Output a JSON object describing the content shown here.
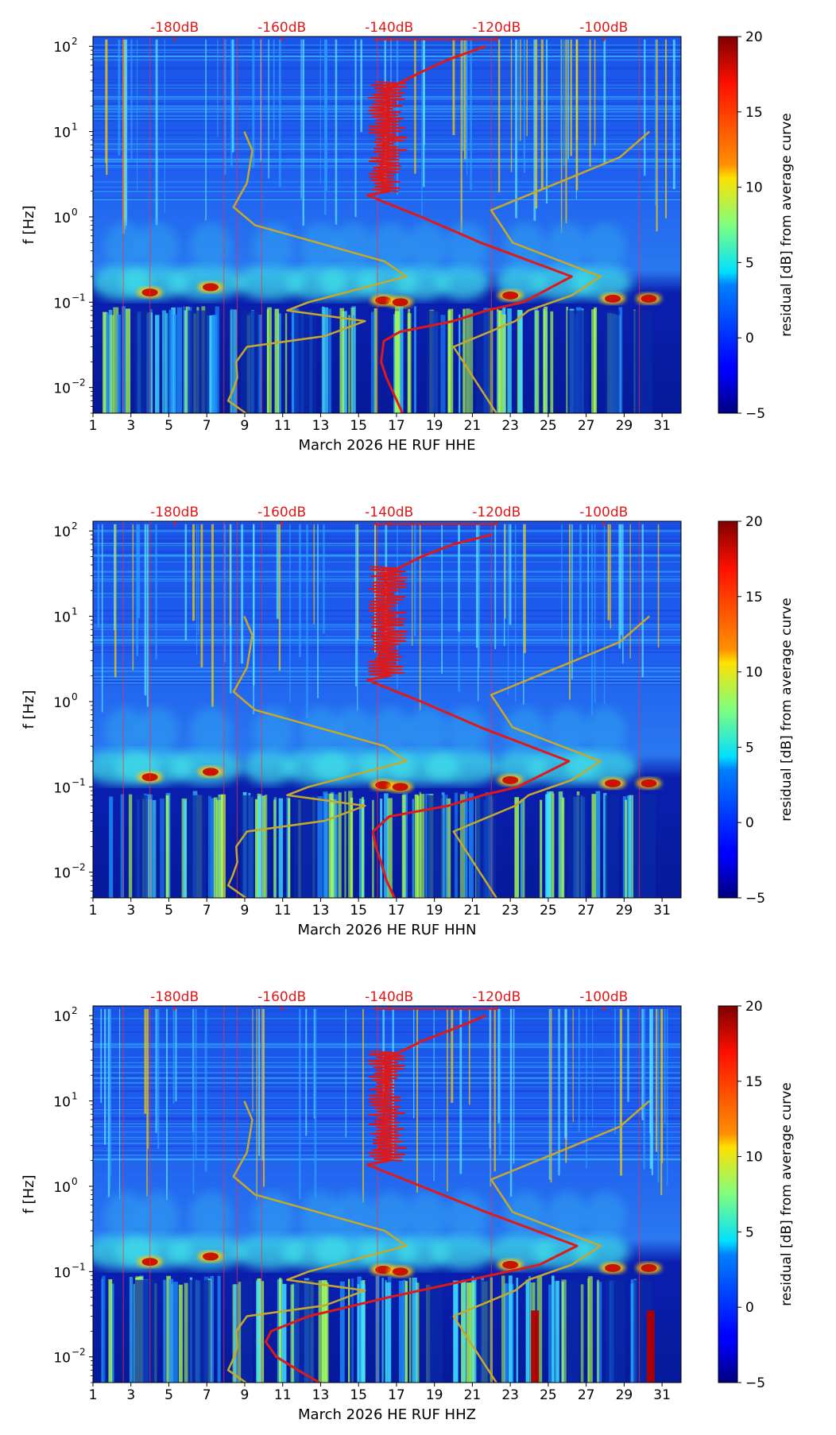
{
  "chart_data": [
    {
      "type": "heatmap",
      "panel_label": "March 2026 HE RUF  HHE",
      "xlabel": "March 2026 HE RUF  HHE",
      "ylabel": "f [Hz]",
      "x_range": [
        1,
        32
      ],
      "x_ticks": [
        "1",
        "3",
        "5",
        "7",
        "9",
        "11",
        "13",
        "15",
        "17",
        "19",
        "21",
        "23",
        "25",
        "27",
        "29",
        "31"
      ],
      "y_range": [
        0.005,
        130
      ],
      "y_scale": "log",
      "y_ticks": [
        {
          "v": 0.01,
          "label": "10"
        },
        {
          "v": 0.1,
          "label": "10"
        },
        {
          "v": 1,
          "label": "10"
        },
        {
          "v": 10,
          "label": "10"
        },
        {
          "v": 100,
          "label": "10"
        }
      ],
      "y_tick_exponents": [
        "−2",
        "−1",
        "0",
        "1",
        "2"
      ],
      "top_axis_labels": [
        "-180dB",
        "-160dB",
        "-140dB",
        "-120dB",
        "-100dB"
      ],
      "top_axis_db": [
        -180,
        -160,
        -140,
        -120,
        -100
      ],
      "colorbar": {
        "label": "residual [dB] from average curve",
        "min": -5,
        "max": 20,
        "ticks": [
          "−5",
          "0",
          "5",
          "10",
          "15",
          "20"
        ]
      },
      "series": [
        {
          "name": "low noise model",
          "color": "#c8a82a",
          "points": [
            [
              0.005,
              -166.7
            ],
            [
              0.007,
              -170
            ],
            [
              0.009,
              -169.2
            ],
            [
              0.013,
              -168.3
            ],
            [
              0.02,
              -168.5
            ],
            [
              0.03,
              -166.5
            ],
            [
              0.04,
              -152
            ],
            [
              0.06,
              -144.5
            ],
            [
              0.08,
              -159
            ],
            [
              0.1,
              -155
            ],
            [
              0.2,
              -136.8
            ],
            [
              0.3,
              -140.8
            ],
            [
              0.8,
              -165
            ],
            [
              1.3,
              -169
            ],
            [
              2.5,
              -166.5
            ],
            [
              6,
              -165.5
            ],
            [
              10,
              -167
            ]
          ]
        },
        {
          "name": "high noise model",
          "color": "#c8a82a",
          "points": [
            [
              0.005,
              -120
            ],
            [
              0.03,
              -128
            ],
            [
              0.06,
              -116.5
            ],
            [
              0.08,
              -114
            ],
            [
              0.12,
              -106
            ],
            [
              0.2,
              -100.6
            ],
            [
              0.5,
              -117
            ],
            [
              1.2,
              -121
            ],
            [
              3,
              -105.5
            ],
            [
              5,
              -97
            ],
            [
              10,
              -91.5
            ]
          ]
        },
        {
          "name": "average PSD",
          "color": "#e01818",
          "points": [
            [
              0.005,
              -137.5
            ],
            [
              0.008,
              -139
            ],
            [
              0.013,
              -140.5
            ],
            [
              0.02,
              -141.5
            ],
            [
              0.035,
              -141
            ],
            [
              0.045,
              -138
            ],
            [
              0.06,
              -128
            ],
            [
              0.08,
              -121.8
            ],
            [
              0.1,
              -115
            ],
            [
              0.2,
              -106
            ],
            [
              0.5,
              -123
            ],
            [
              1,
              -134
            ],
            [
              1.5,
              -141
            ],
            [
              1.8,
              -144
            ],
            [
              2,
              -140
            ],
            [
              3,
              -142
            ],
            [
              5,
              -141
            ],
            [
              10,
              -141
            ],
            [
              20,
              -140
            ],
            [
              30,
              -141
            ],
            [
              50,
              -134
            ],
            [
              70,
              -129
            ],
            [
              100,
              -122
            ]
          ]
        }
      ]
    },
    {
      "type": "heatmap",
      "panel_label": "March 2026 HE RUF  HHN",
      "xlabel": "March 2026 HE RUF  HHN",
      "ylabel": "f [Hz]",
      "x_range": [
        1,
        32
      ],
      "x_ticks": [
        "1",
        "3",
        "5",
        "7",
        "9",
        "11",
        "13",
        "15",
        "17",
        "19",
        "21",
        "23",
        "25",
        "27",
        "29",
        "31"
      ],
      "y_range": [
        0.005,
        130
      ],
      "y_scale": "log",
      "y_ticks": [
        {
          "v": 0.01,
          "label": "10"
        },
        {
          "v": 0.1,
          "label": "10"
        },
        {
          "v": 1,
          "label": "10"
        },
        {
          "v": 10,
          "label": "10"
        },
        {
          "v": 100,
          "label": "10"
        }
      ],
      "y_tick_exponents": [
        "−2",
        "−1",
        "0",
        "1",
        "2"
      ],
      "top_axis_labels": [
        "-180dB",
        "-160dB",
        "-140dB",
        "-120dB",
        "-100dB"
      ],
      "top_axis_db": [
        -180,
        -160,
        -140,
        -120,
        -100
      ],
      "colorbar": {
        "label": "residual [dB] from average curve",
        "min": -5,
        "max": 20,
        "ticks": [
          "−5",
          "0",
          "5",
          "10",
          "15",
          "20"
        ]
      },
      "series": [
        {
          "name": "low noise model",
          "color": "#c8a82a",
          "points": [
            [
              0.005,
              -166.7
            ],
            [
              0.007,
              -170
            ],
            [
              0.009,
              -169.2
            ],
            [
              0.013,
              -168.3
            ],
            [
              0.02,
              -168.5
            ],
            [
              0.03,
              -166.5
            ],
            [
              0.04,
              -152
            ],
            [
              0.06,
              -144.5
            ],
            [
              0.08,
              -159
            ],
            [
              0.1,
              -155
            ],
            [
              0.2,
              -136.8
            ],
            [
              0.3,
              -140.8
            ],
            [
              0.8,
              -165
            ],
            [
              1.3,
              -169
            ],
            [
              2.5,
              -166.5
            ],
            [
              6,
              -165.5
            ],
            [
              10,
              -167
            ]
          ]
        },
        {
          "name": "high noise model",
          "color": "#c8a82a",
          "points": [
            [
              0.005,
              -120
            ],
            [
              0.03,
              -128
            ],
            [
              0.06,
              -116.5
            ],
            [
              0.08,
              -114
            ],
            [
              0.12,
              -106
            ],
            [
              0.2,
              -100.6
            ],
            [
              0.5,
              -117
            ],
            [
              1.2,
              -121
            ],
            [
              3,
              -105.5
            ],
            [
              5,
              -97
            ],
            [
              10,
              -91.5
            ]
          ]
        },
        {
          "name": "average PSD",
          "color": "#e01818",
          "points": [
            [
              0.005,
              -139
            ],
            [
              0.008,
              -140.5
            ],
            [
              0.013,
              -141.5
            ],
            [
              0.02,
              -142.5
            ],
            [
              0.03,
              -143
            ],
            [
              0.045,
              -140
            ],
            [
              0.06,
              -129
            ],
            [
              0.08,
              -122.5
            ],
            [
              0.1,
              -116
            ],
            [
              0.2,
              -106.5
            ],
            [
              0.5,
              -123
            ],
            [
              1,
              -134
            ],
            [
              1.5,
              -141
            ],
            [
              1.8,
              -144
            ],
            [
              2,
              -140
            ],
            [
              3,
              -142
            ],
            [
              5,
              -141
            ],
            [
              10,
              -141
            ],
            [
              20,
              -140
            ],
            [
              30,
              -141
            ],
            [
              50,
              -134
            ],
            [
              70,
              -128
            ],
            [
              90,
              -121
            ]
          ]
        }
      ]
    },
    {
      "type": "heatmap",
      "panel_label": "March 2026 HE RUF  HHZ",
      "xlabel": "March 2026 HE RUF  HHZ",
      "ylabel": "f [Hz]",
      "x_range": [
        1,
        32
      ],
      "x_ticks": [
        "1",
        "3",
        "5",
        "7",
        "9",
        "11",
        "13",
        "15",
        "17",
        "19",
        "21",
        "23",
        "25",
        "27",
        "29",
        "31"
      ],
      "y_range": [
        0.005,
        130
      ],
      "y_scale": "log",
      "y_ticks": [
        {
          "v": 0.01,
          "label": "10"
        },
        {
          "v": 0.1,
          "label": "10"
        },
        {
          "v": 1,
          "label": "10"
        },
        {
          "v": 10,
          "label": "10"
        },
        {
          "v": 100,
          "label": "10"
        }
      ],
      "y_tick_exponents": [
        "−2",
        "−1",
        "0",
        "1",
        "2"
      ],
      "top_axis_labels": [
        "-180dB",
        "-160dB",
        "-140dB",
        "-120dB",
        "-100dB"
      ],
      "top_axis_db": [
        -180,
        -160,
        -140,
        -120,
        -100
      ],
      "colorbar": {
        "label": "residual [dB] from average curve",
        "min": -5,
        "max": 20,
        "ticks": [
          "−5",
          "0",
          "5",
          "10",
          "15",
          "20"
        ]
      },
      "series": [
        {
          "name": "low noise model",
          "color": "#c8a82a",
          "points": [
            [
              0.005,
              -166.7
            ],
            [
              0.007,
              -170
            ],
            [
              0.009,
              -169.2
            ],
            [
              0.013,
              -168.3
            ],
            [
              0.02,
              -168.5
            ],
            [
              0.03,
              -166.5
            ],
            [
              0.04,
              -152
            ],
            [
              0.06,
              -144.5
            ],
            [
              0.08,
              -159
            ],
            [
              0.1,
              -155
            ],
            [
              0.2,
              -136.8
            ],
            [
              0.3,
              -140.8
            ],
            [
              0.8,
              -165
            ],
            [
              1.3,
              -169
            ],
            [
              2.5,
              -166.5
            ],
            [
              6,
              -165.5
            ],
            [
              10,
              -167
            ]
          ]
        },
        {
          "name": "high noise model",
          "color": "#c8a82a",
          "points": [
            [
              0.005,
              -120
            ],
            [
              0.03,
              -128
            ],
            [
              0.06,
              -116.5
            ],
            [
              0.08,
              -114
            ],
            [
              0.12,
              -106
            ],
            [
              0.2,
              -100.6
            ],
            [
              0.5,
              -117
            ],
            [
              1.2,
              -121
            ],
            [
              3,
              -105.5
            ],
            [
              5,
              -97
            ],
            [
              10,
              -91.5
            ]
          ]
        },
        {
          "name": "average PSD",
          "color": "#e01818",
          "points": [
            [
              0.005,
              -153
            ],
            [
              0.007,
              -157
            ],
            [
              0.01,
              -161
            ],
            [
              0.015,
              -163
            ],
            [
              0.02,
              -162
            ],
            [
              0.03,
              -155
            ],
            [
              0.05,
              -140
            ],
            [
              0.08,
              -125
            ],
            [
              0.12,
              -112
            ],
            [
              0.2,
              -105
            ],
            [
              0.5,
              -122
            ],
            [
              1,
              -134
            ],
            [
              1.5,
              -141
            ],
            [
              1.8,
              -144
            ],
            [
              2,
              -140
            ],
            [
              3,
              -142
            ],
            [
              5,
              -141
            ],
            [
              10,
              -141
            ],
            [
              20,
              -140
            ],
            [
              30,
              -141
            ],
            [
              50,
              -134
            ],
            [
              70,
              -128
            ],
            [
              100,
              -122
            ]
          ]
        }
      ]
    }
  ]
}
